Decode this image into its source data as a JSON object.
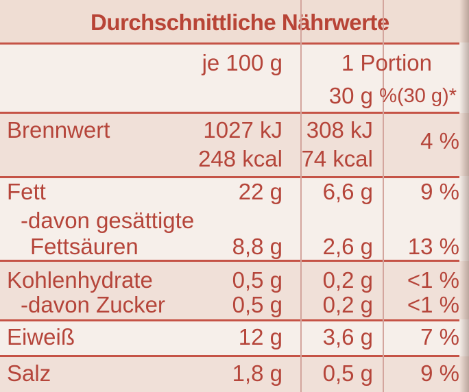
{
  "title": "Durchschnittliche Nährwerte",
  "headers": {
    "per100": "je 100 g",
    "portion": "1 Portion",
    "portion_size": "30 g",
    "percent": "%(30 g)*"
  },
  "rows": [
    {
      "label": "Brennwert",
      "v100": "1027 kJ",
      "vportion": "308 kJ",
      "pct": "4 %"
    },
    {
      "label": "",
      "v100": "248 kcal",
      "vportion": "74 kcal",
      "pct": ""
    },
    {
      "label": "Fett",
      "v100": "22 g",
      "vportion": "6,6 g",
      "pct": "9 %"
    },
    {
      "label": "-davon gesättigte",
      "v100": "",
      "vportion": "",
      "pct": ""
    },
    {
      "label": "Fettsäuren",
      "v100": "8,8 g",
      "vportion": "2,6 g",
      "pct": "13 %"
    },
    {
      "label": "Kohlenhydrate",
      "v100": "0,5 g",
      "vportion": "0,2 g",
      "pct": "<1 %"
    },
    {
      "label": "-davon Zucker",
      "v100": "0,5 g",
      "vportion": "0,2 g",
      "pct": "<1 %"
    },
    {
      "label": "Eiweiß",
      "v100": "12 g",
      "vportion": "3,6 g",
      "pct": "7 %"
    },
    {
      "label": "Salz",
      "v100": "1,8 g",
      "vportion": "0,5 g",
      "pct": "9 %"
    }
  ]
}
